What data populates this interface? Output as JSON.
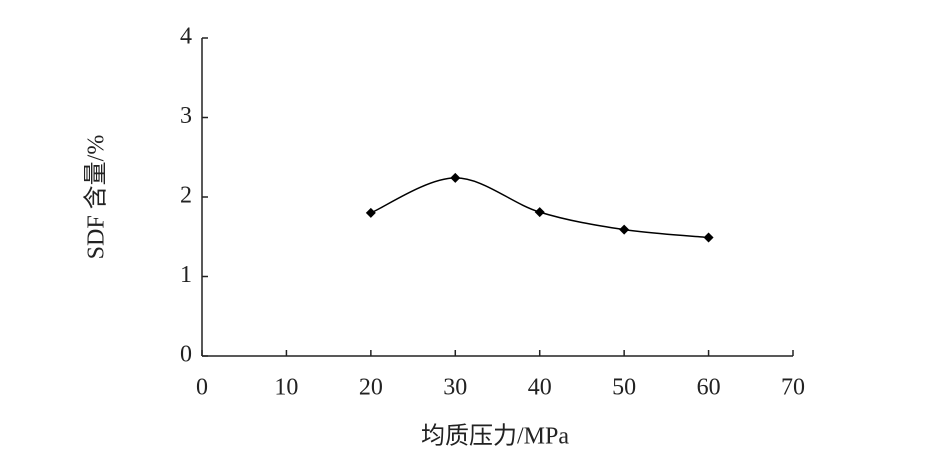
{
  "chart_data": {
    "type": "line",
    "x_label": "均质压力/MPa",
    "y_label": "SDF 含量/%",
    "x": [
      20,
      30,
      40,
      50,
      60
    ],
    "series": [
      {
        "color": "#000000",
        "values": [
          1.8,
          2.24,
          1.81,
          1.59,
          1.49
        ]
      }
    ],
    "xlim": [
      0,
      70
    ],
    "xticks": [
      0,
      10,
      20,
      30,
      40,
      50,
      60,
      70
    ],
    "ylim": [
      0,
      4
    ],
    "yticks": [
      0,
      1,
      2,
      3,
      4
    ],
    "smooth": true
  }
}
